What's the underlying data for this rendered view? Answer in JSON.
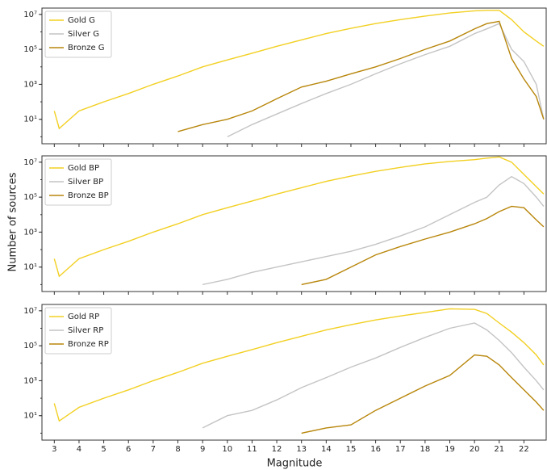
{
  "xlabel": "Magnitude",
  "ylabel": "Number of sources",
  "chart_data": [
    {
      "type": "line",
      "yscale": "log",
      "legend": "upper left",
      "x": [
        3,
        3.2,
        4,
        5,
        6,
        7,
        8,
        9,
        10,
        11,
        12,
        13,
        14,
        15,
        16,
        17,
        18,
        19,
        20,
        20.5,
        21,
        21.5,
        22,
        22.5,
        22.8
      ],
      "xlim": [
        2.5,
        22.9
      ],
      "ylim": [
        0.4,
        23000000
      ],
      "yticks": [
        {
          "value": 10,
          "label": "10¹"
        },
        {
          "value": 1000,
          "label": "10³"
        },
        {
          "value": 100000,
          "label": "10⁵"
        },
        {
          "value": 10000000,
          "label": "10⁷"
        }
      ],
      "series": [
        {
          "name": "Gold G",
          "color": "#f2d022",
          "values": [
            30,
            3,
            30,
            100,
            300,
            1000,
            3000,
            10000,
            25000,
            60000,
            150000,
            350000,
            800000,
            1600000,
            3000000,
            5000000,
            8000000,
            12000000,
            16000000,
            17000000,
            17000000,
            5000000,
            1000000,
            300000,
            150000
          ]
        },
        {
          "name": "Silver G",
          "color": "#c4c4c4",
          "values": [
            null,
            null,
            null,
            null,
            null,
            null,
            null,
            null,
            1,
            5,
            20,
            80,
            300,
            1000,
            4000,
            15000,
            50000,
            150000,
            800000,
            1500000,
            3000000,
            100000,
            20000,
            1000,
            10
          ]
        },
        {
          "name": "Bronze G",
          "color": "#b8860b",
          "values": [
            null,
            null,
            null,
            null,
            null,
            null,
            2,
            5,
            10,
            30,
            150,
            700,
            1500,
            4000,
            10000,
            30000,
            100000,
            300000,
            1500000,
            3000000,
            4000000,
            30000,
            2000,
            200,
            10
          ]
        }
      ]
    },
    {
      "type": "line",
      "yscale": "log",
      "legend": "upper left",
      "x": [
        3,
        3.2,
        4,
        5,
        6,
        7,
        8,
        9,
        10,
        11,
        12,
        13,
        14,
        15,
        16,
        17,
        18,
        19,
        20,
        20.5,
        21,
        21.5,
        22,
        22.5,
        22.8
      ],
      "xlim": [
        2.5,
        22.9
      ],
      "ylim": [
        0.4,
        23000000
      ],
      "yticks": [
        {
          "value": 10,
          "label": "10¹"
        },
        {
          "value": 1000,
          "label": "10³"
        },
        {
          "value": 100000,
          "label": "10⁵"
        },
        {
          "value": 10000000,
          "label": "10⁷"
        }
      ],
      "series": [
        {
          "name": "Gold BP",
          "color": "#f2d022",
          "values": [
            30,
            3,
            30,
            100,
            300,
            1000,
            3000,
            10000,
            25000,
            60000,
            150000,
            350000,
            800000,
            1600000,
            3000000,
            5000000,
            8000000,
            11000000,
            14000000,
            17000000,
            20000000,
            10000000,
            2000000,
            400000,
            150000
          ]
        },
        {
          "name": "Silver BP",
          "color": "#c4c4c4",
          "values": [
            null,
            null,
            null,
            null,
            null,
            null,
            null,
            1,
            2,
            5,
            10,
            20,
            40,
            80,
            200,
            600,
            2000,
            10000,
            50000,
            100000,
            500000,
            1500000,
            600000,
            100000,
            30000
          ]
        },
        {
          "name": "Bronze BP",
          "color": "#b8860b",
          "values": [
            null,
            null,
            null,
            null,
            null,
            null,
            null,
            null,
            null,
            null,
            null,
            1,
            2,
            10,
            50,
            150,
            400,
            1000,
            3000,
            6000,
            15000,
            30000,
            25000,
            5000,
            2000
          ]
        }
      ]
    },
    {
      "type": "line",
      "yscale": "log",
      "legend": "upper left",
      "x": [
        3,
        3.2,
        4,
        5,
        6,
        7,
        8,
        9,
        10,
        11,
        12,
        13,
        14,
        15,
        16,
        17,
        18,
        19,
        20,
        20.5,
        21,
        21.5,
        22,
        22.5,
        22.8
      ],
      "xlim": [
        2.5,
        22.9
      ],
      "ylim": [
        0.4,
        23000000
      ],
      "xticks": [
        3,
        4,
        5,
        6,
        7,
        8,
        9,
        10,
        11,
        12,
        13,
        14,
        15,
        16,
        17,
        18,
        19,
        20,
        21,
        22
      ],
      "yticks": [
        {
          "value": 10,
          "label": "10¹"
        },
        {
          "value": 1000,
          "label": "10³"
        },
        {
          "value": 100000,
          "label": "10⁵"
        },
        {
          "value": 10000000,
          "label": "10⁷"
        }
      ],
      "series": [
        {
          "name": "Gold RP",
          "color": "#f2d022",
          "values": [
            50,
            5,
            30,
            100,
            300,
            1000,
            3000,
            10000,
            25000,
            60000,
            150000,
            350000,
            800000,
            1600000,
            3000000,
            5000000,
            8000000,
            13000000,
            12000000,
            7000000,
            2000000,
            600000,
            150000,
            30000,
            8000
          ]
        },
        {
          "name": "Silver RP",
          "color": "#c4c4c4",
          "values": [
            null,
            null,
            null,
            null,
            null,
            null,
            null,
            2,
            10,
            20,
            80,
            400,
            1500,
            6000,
            20000,
            80000,
            300000,
            1000000,
            2000000,
            800000,
            200000,
            40000,
            6000,
            1000,
            300
          ]
        },
        {
          "name": "Bronze RP",
          "color": "#b8860b",
          "values": [
            null,
            null,
            null,
            null,
            null,
            null,
            null,
            null,
            null,
            null,
            null,
            1,
            2,
            3,
            20,
            100,
            500,
            2000,
            30000,
            25000,
            8000,
            1500,
            300,
            60,
            20
          ]
        }
      ]
    }
  ]
}
